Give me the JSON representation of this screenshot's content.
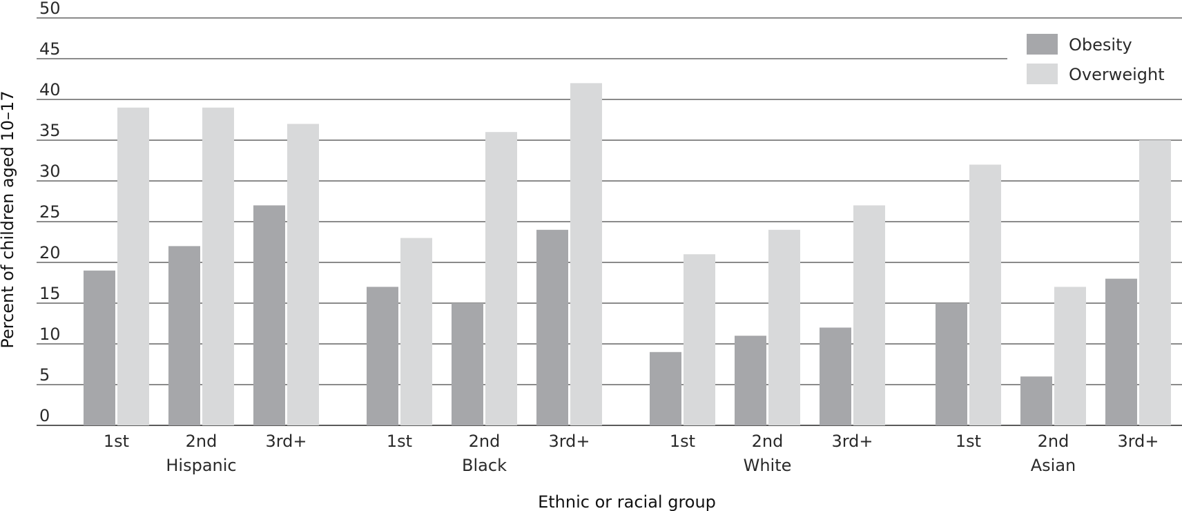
{
  "chart_data": {
    "type": "bar",
    "title": "",
    "xlabel": "Ethnic or racial group",
    "ylabel": "Percent of children aged 10–17",
    "ylim": [
      0,
      50
    ],
    "yticks": [
      0,
      5,
      10,
      15,
      20,
      25,
      30,
      35,
      40,
      45,
      50
    ],
    "grid": true,
    "legend_position": "top-right",
    "groups": [
      {
        "name": "Hispanic",
        "categories": [
          "1st",
          "2nd",
          "3rd+"
        ]
      },
      {
        "name": "Black",
        "categories": [
          "1st",
          "2nd",
          "3rd+"
        ]
      },
      {
        "name": "White",
        "categories": [
          "1st",
          "2nd",
          "3rd+"
        ]
      },
      {
        "name": "Asian",
        "categories": [
          "1st",
          "2nd",
          "3rd+"
        ]
      }
    ],
    "series": [
      {
        "name": "Obesity",
        "color": "#a6a7aa",
        "values": [
          19,
          22,
          27,
          17,
          15,
          24,
          9,
          11,
          12,
          15,
          6,
          18
        ]
      },
      {
        "name": "Overweight",
        "color": "#d8d9da",
        "values": [
          39,
          39,
          37,
          23,
          36,
          42,
          21,
          24,
          27,
          32,
          17,
          35
        ]
      }
    ]
  }
}
